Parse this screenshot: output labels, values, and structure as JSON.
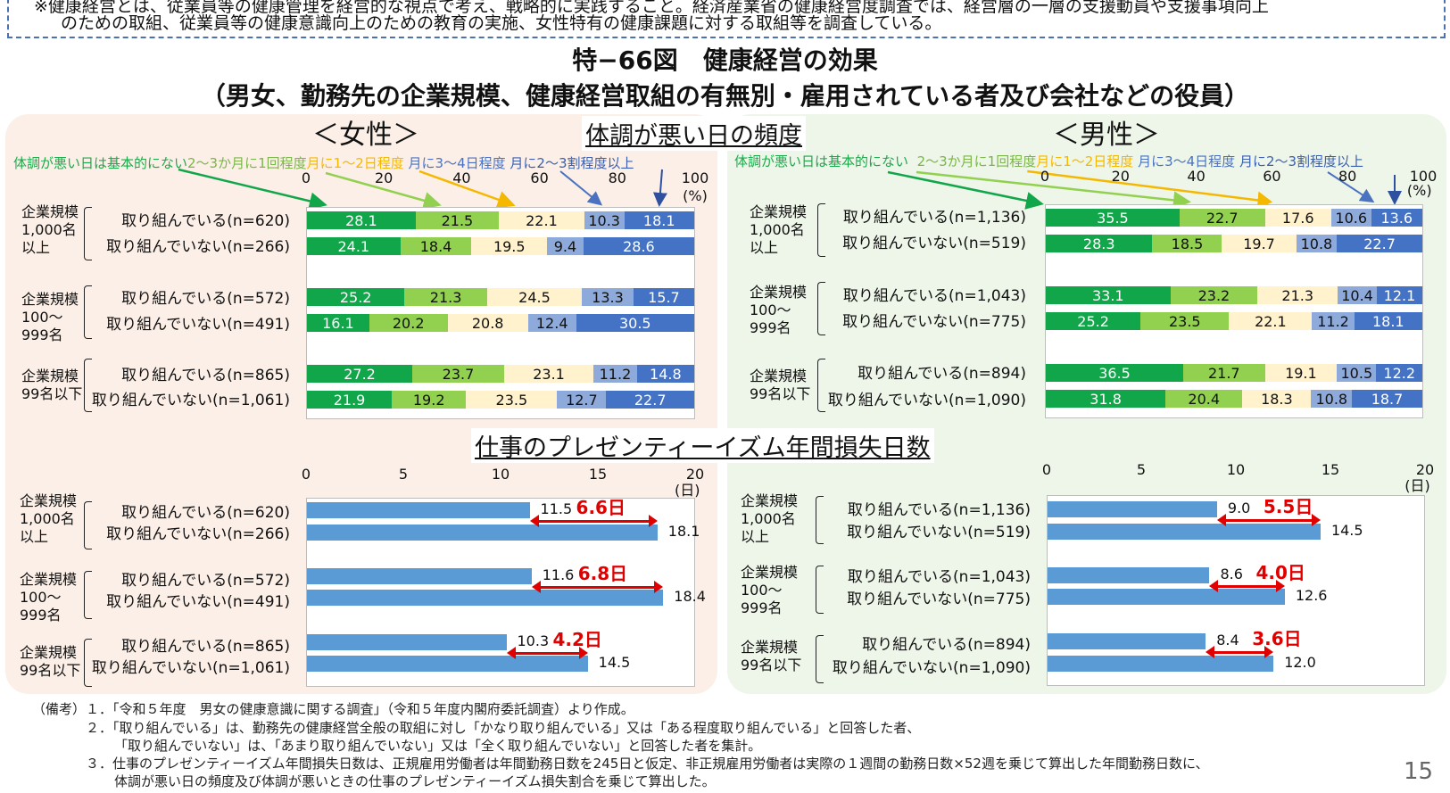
{
  "note": {
    "line1": "※健康経営とは、従業員等の健康管理を経営的な視点で考え、戦略的に実践すること。経済産業省の健康経営度調査では、経営層の一層の支援動員や支援事項向上",
    "line2": "のための取組、従業員等の健康意識向上のための教育の実施、女性特有の健康課題に対する取組等を調査している。"
  },
  "title": {
    "line1": "特−66図　健康経営の効果",
    "line2": "（男女、勤務先の企業規模、健康経営取組の有無別・雇用されている者及び会社などの役員）"
  },
  "panels": {
    "female_label": "＜女性＞",
    "male_label": "＜男性＞",
    "section1_title": "体調が悪い日の頻度",
    "section2_title": "仕事のプレゼンティーイズム年間損失日数"
  },
  "legend": {
    "items": [
      {
        "label": "体調が悪い日は基本的にない",
        "color": "#1aab4a"
      },
      {
        "label": "2～3か月に1回程度",
        "color": "#7ab648"
      },
      {
        "label": "月に1～2日程度",
        "color": "#f5b800"
      },
      {
        "label": "月に3～4日程度",
        "color": "#4a72c0"
      },
      {
        "label": "月に2～3割程度以上",
        "color": "#3a5fb0"
      }
    ]
  },
  "axis1": {
    "ticks": [
      "0",
      "20",
      "40",
      "60",
      "80",
      "100"
    ],
    "unit": "(%)"
  },
  "axis2": {
    "ticks": [
      "0",
      "5",
      "10",
      "15",
      "20"
    ],
    "unit": "(日)"
  },
  "groups": [
    "企業規模\n1,000名\n以上",
    "企業規模\n100～\n999名",
    "企業規模\n99名以下"
  ],
  "chart_data": [
    {
      "type": "bar",
      "title": "体調が悪い日の頻度 ＜女性＞",
      "stacked": true,
      "orientation": "horizontal",
      "xlabel": "(%)",
      "xlim": [
        0,
        100
      ],
      "categories": [
        "取り組んでいる(n=620)",
        "取り組んでいない(n=266)",
        "取り組んでいる(n=572)",
        "取り組んでいない(n=491)",
        "取り組んでいる(n=865)",
        "取り組んでいない(n=1,061)"
      ],
      "series": [
        {
          "name": "体調が悪い日は基本的にない",
          "color": "#12a64a",
          "values": [
            28.1,
            24.1,
            25.2,
            16.1,
            27.2,
            21.9
          ]
        },
        {
          "name": "2～3か月に1回程度",
          "color": "#92d050",
          "values": [
            21.5,
            18.4,
            21.3,
            20.2,
            23.7,
            19.2
          ]
        },
        {
          "name": "月に1～2日程度",
          "color": "#fff2cc",
          "values": [
            22.1,
            19.5,
            24.5,
            20.8,
            23.1,
            23.5
          ]
        },
        {
          "name": "月に3～4日程度",
          "color": "#8eaadb",
          "values": [
            10.3,
            9.4,
            13.3,
            12.4,
            11.2,
            12.7
          ]
        },
        {
          "name": "月に2～3割程度以上",
          "color": "#4472c4",
          "values": [
            18.1,
            28.6,
            15.7,
            30.5,
            14.8,
            22.7
          ]
        }
      ]
    },
    {
      "type": "bar",
      "title": "体調が悪い日の頻度 ＜男性＞",
      "stacked": true,
      "orientation": "horizontal",
      "xlabel": "(%)",
      "xlim": [
        0,
        100
      ],
      "categories": [
        "取り組んでいる(n=1,136)",
        "取り組んでいない(n=519)",
        "取り組んでいる(n=1,043)",
        "取り組んでいない(n=775)",
        "取り組んでいる(n=894)",
        "取り組んでいない(n=1,090)"
      ],
      "series": [
        {
          "name": "体調が悪い日は基本的にない",
          "color": "#12a64a",
          "values": [
            35.5,
            28.3,
            33.1,
            25.2,
            36.5,
            31.8
          ]
        },
        {
          "name": "2～3か月に1回程度",
          "color": "#92d050",
          "values": [
            22.7,
            18.5,
            23.2,
            23.5,
            21.7,
            20.4
          ]
        },
        {
          "name": "月に1～2日程度",
          "color": "#fff2cc",
          "values": [
            17.6,
            19.7,
            21.3,
            22.1,
            19.1,
            18.3
          ]
        },
        {
          "name": "月に3～4日程度",
          "color": "#8eaadb",
          "values": [
            10.6,
            10.8,
            10.4,
            11.2,
            10.5,
            10.8
          ]
        },
        {
          "name": "月に2～3割程度以上",
          "color": "#4472c4",
          "values": [
            13.6,
            22.7,
            12.1,
            18.1,
            12.2,
            18.7
          ]
        }
      ]
    },
    {
      "type": "bar",
      "title": "仕事のプレゼンティーイズム年間損失日数 ＜女性＞",
      "orientation": "horizontal",
      "xlabel": "(日)",
      "xlim": [
        0,
        20
      ],
      "categories": [
        "取り組んでいる(n=620)",
        "取り組んでいない(n=266)",
        "取り組んでいる(n=572)",
        "取り組んでいない(n=491)",
        "取り組んでいる(n=865)",
        "取り組んでいない(n=1,061)"
      ],
      "values": [
        11.5,
        18.1,
        11.6,
        18.4,
        10.3,
        14.5
      ],
      "annotations": [
        "6.6日",
        "6.8日",
        "4.2日"
      ]
    },
    {
      "type": "bar",
      "title": "仕事のプレゼンティーイズム年間損失日数 ＜男性＞",
      "orientation": "horizontal",
      "xlabel": "(日)",
      "xlim": [
        0,
        20
      ],
      "categories": [
        "取り組んでいる(n=1,136)",
        "取り組んでいない(n=519)",
        "取り組んでいる(n=1,043)",
        "取り組んでいない(n=775)",
        "取り組んでいる(n=894)",
        "取り組んでいない(n=1,090)"
      ],
      "values": [
        9.0,
        14.5,
        8.6,
        12.6,
        8.4,
        12.0
      ],
      "annotations": [
        "5.5日",
        "4.0日",
        "3.6日"
      ]
    }
  ],
  "footnotes": {
    "label": "（備考）",
    "n1": "１．「令和５年度　男女の健康意識に関する調査」（令和５年度内閣府委託調査）より作成。",
    "n2a": "２．「取り組んでいる」は、勤務先の健康経営全般の取組に対し「かなり取り組んでいる」又は「ある程度取り組んでいる」と回答した者、",
    "n2b": "「取り組んでいない」は、「あまり取り組んでいない」又は「全く取り組んでいない」と回答した者を集計。",
    "n3a": "３．仕事のプレゼンティーイズム年間損失日数は、正規雇用労働者は年間勤務日数を245日と仮定、非正規雇用労働者は実際の１週間の勤務日数×52週を乗じて算出した年間勤務日数に、",
    "n3b": "体調が悪い日の頻度及び体調が悪いときの仕事のプレゼンティーイズム損失割合を乗じて算出した。"
  },
  "page_number": "15"
}
